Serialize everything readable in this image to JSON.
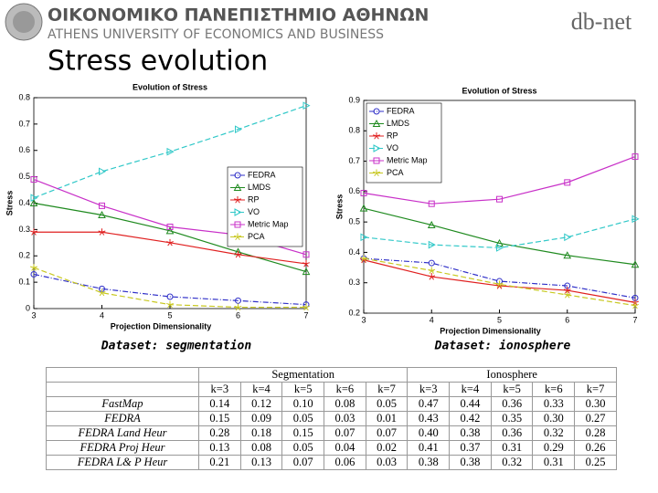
{
  "header": {
    "greek": "ΟΙΚΟΝΟΜΙΚΟ ΠΑΝΕΠΙΣΤΗΜΙΟ ΑΘΗΝΩΝ",
    "english": "ATHENS UNIVERSITY OF ECONOMICS AND BUSINESS",
    "logo": "db-net"
  },
  "title": "Stress evolution",
  "captions": [
    "Dataset: segmentation",
    "Dataset: ionosphere"
  ],
  "chart_data": [
    {
      "type": "line",
      "title": "Evolution of Stress",
      "x_label": "Projection Dimensionality",
      "y_label": "Stress",
      "x": [
        3,
        4,
        5,
        6,
        7
      ],
      "xlim": [
        3,
        7
      ],
      "xticks": [
        3,
        4,
        5,
        6,
        7
      ],
      "ylim": [
        0,
        0.8
      ],
      "yticks": [
        0,
        0.1,
        0.2,
        0.3,
        0.4,
        0.5,
        0.6,
        0.7,
        0.8
      ],
      "legend": "center right",
      "series": [
        {
          "name": "FEDRA",
          "color": "#3030c8",
          "marker": "circle",
          "linestyle": "dashdot",
          "values": [
            0.13,
            0.075,
            0.045,
            0.03,
            0.015
          ]
        },
        {
          "name": "LMDS",
          "color": "#1f8a1f",
          "marker": "triangle-up",
          "linestyle": "solid",
          "values": [
            0.4,
            0.355,
            0.295,
            0.215,
            0.14
          ]
        },
        {
          "name": "RP",
          "color": "#e02020",
          "marker": "star",
          "linestyle": "solid",
          "values": [
            0.29,
            0.29,
            0.25,
            0.205,
            0.17
          ]
        },
        {
          "name": "VO",
          "color": "#30c8c8",
          "marker": "triangle-right",
          "linestyle": "dashed",
          "values": [
            0.42,
            0.52,
            0.595,
            0.68,
            0.77
          ]
        },
        {
          "name": "Metric Map",
          "color": "#c830c8",
          "marker": "square",
          "linestyle": "solid",
          "values": [
            0.49,
            0.39,
            0.31,
            0.28,
            0.205
          ]
        },
        {
          "name": "PCA",
          "color": "#c8c820",
          "marker": "star",
          "linestyle": "dashed",
          "values": [
            0.155,
            0.06,
            0.015,
            0.005,
            0.005
          ]
        }
      ]
    },
    {
      "type": "line",
      "title": "Evolution of Stress",
      "x_label": "Projection Dimensionality",
      "y_label": "Stress",
      "x": [
        3,
        4,
        5,
        6,
        7
      ],
      "xlim": [
        3,
        7
      ],
      "xticks": [
        3,
        4,
        5,
        6,
        7
      ],
      "ylim": [
        0.2,
        0.9
      ],
      "yticks": [
        0.2,
        0.3,
        0.4,
        0.5,
        0.6,
        0.7,
        0.8,
        0.9
      ],
      "legend": "upper left",
      "series": [
        {
          "name": "FEDRA",
          "color": "#3030c8",
          "marker": "circle",
          "linestyle": "dashdot",
          "values": [
            0.38,
            0.365,
            0.305,
            0.29,
            0.25
          ]
        },
        {
          "name": "LMDS",
          "color": "#1f8a1f",
          "marker": "triangle-up",
          "linestyle": "solid",
          "values": [
            0.545,
            0.49,
            0.43,
            0.39,
            0.36
          ]
        },
        {
          "name": "RP",
          "color": "#e02020",
          "marker": "star",
          "linestyle": "solid",
          "values": [
            0.375,
            0.32,
            0.29,
            0.275,
            0.235
          ]
        },
        {
          "name": "VO",
          "color": "#30c8c8",
          "marker": "triangle-right",
          "linestyle": "dashed",
          "values": [
            0.45,
            0.425,
            0.415,
            0.45,
            0.51
          ]
        },
        {
          "name": "Metric Map",
          "color": "#c830c8",
          "marker": "square",
          "linestyle": "solid",
          "values": [
            0.595,
            0.56,
            0.575,
            0.63,
            0.715
          ]
        },
        {
          "name": "PCA",
          "color": "#c8c820",
          "marker": "star",
          "linestyle": "dashed",
          "values": [
            0.38,
            0.34,
            0.295,
            0.26,
            0.225
          ]
        }
      ]
    }
  ],
  "table": {
    "groups": [
      "Segmentation",
      "Ionosphere"
    ],
    "columns": [
      "k=3",
      "k=4",
      "k=5",
      "k=6",
      "k=7",
      "k=3",
      "k=4",
      "k=5",
      "k=6",
      "k=7"
    ],
    "rows": [
      {
        "label": "FastMap",
        "cells": [
          "0.14",
          "0.12",
          "0.10",
          "0.08",
          "0.05",
          "0.47",
          "0.44",
          "0.36",
          "0.33",
          "0.30"
        ]
      },
      {
        "label": "FEDRA",
        "cells": [
          "0.15",
          "0.09",
          "0.05",
          "0.03",
          "0.01",
          "0.43",
          "0.42",
          "0.35",
          "0.30",
          "0.27"
        ]
      },
      {
        "label": "FEDRA Land Heur",
        "cells": [
          "0.28",
          "0.18",
          "0.15",
          "0.07",
          "0.07",
          "0.40",
          "0.38",
          "0.36",
          "0.32",
          "0.28"
        ]
      },
      {
        "label": "FEDRA Proj Heur",
        "cells": [
          "0.13",
          "0.08",
          "0.05",
          "0.04",
          "0.02",
          "0.41",
          "0.37",
          "0.31",
          "0.29",
          "0.26"
        ]
      },
      {
        "label": "FEDRA L& P Heur",
        "cells": [
          "0.21",
          "0.13",
          "0.07",
          "0.06",
          "0.03",
          "0.38",
          "0.38",
          "0.32",
          "0.31",
          "0.25"
        ]
      }
    ]
  }
}
